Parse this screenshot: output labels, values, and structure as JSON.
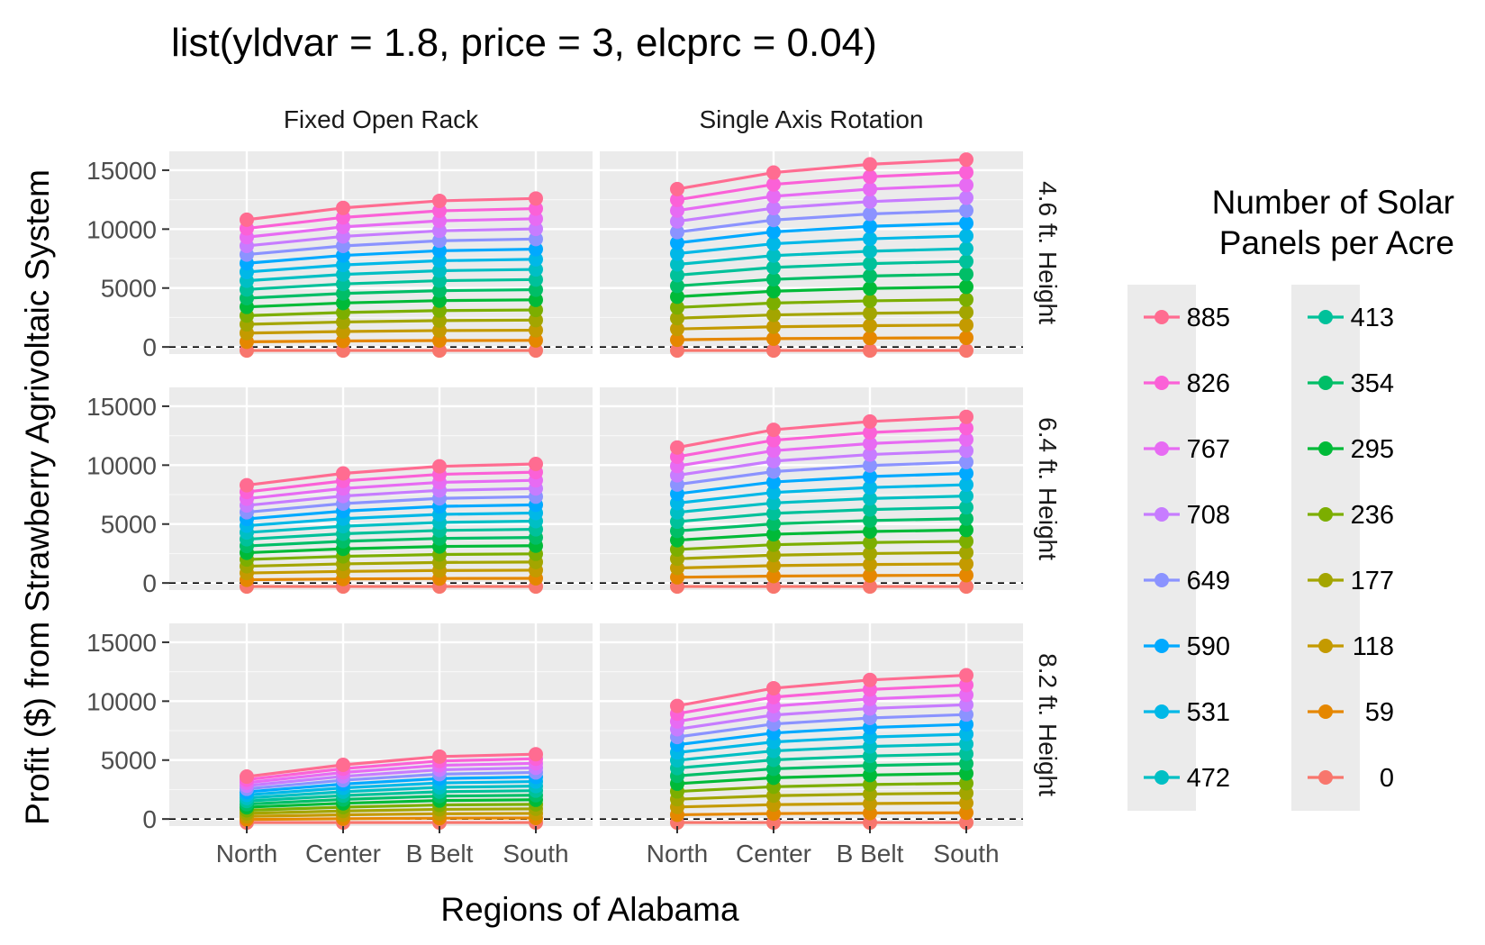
{
  "chart_data": {
    "type": "line",
    "title": "list(yldvar = 1.8, price = 3, elcprc = 0.04)",
    "xlabel": "Regions of Alabama",
    "ylabel": "Profit ($) from Strawberry Agrivoltaic System",
    "categories": [
      "North",
      "Center",
      "B Belt",
      "South"
    ],
    "ylim": [
      -600,
      16600
    ],
    "yticks": [
      0,
      5000,
      10000,
      15000
    ],
    "reference_line": {
      "y": 0,
      "style": "dashed"
    },
    "grid": true,
    "facet_columns": [
      "Fixed Open Rack",
      "Single Axis Rotation"
    ],
    "facet_rows": [
      "4.6 ft. Height",
      "6.4 ft. Height",
      "8.2 ft. Height"
    ],
    "legend": {
      "title_lines": [
        "Number of Solar",
        "Panels per Acre"
      ],
      "position": "right",
      "entries": [
        {
          "label": "885",
          "color": "#FF6C91"
        },
        {
          "label": "826",
          "color": "#FB61D7"
        },
        {
          "label": "767",
          "color": "#E76BF3"
        },
        {
          "label": "708",
          "color": "#C77CFF"
        },
        {
          "label": "649",
          "color": "#8B93FF"
        },
        {
          "label": "590",
          "color": "#00A9FF"
        },
        {
          "label": "531",
          "color": "#00B8E7"
        },
        {
          "label": "472",
          "color": "#00BFC4"
        },
        {
          "label": "413",
          "color": "#00C19A"
        },
        {
          "label": "354",
          "color": "#00BE67"
        },
        {
          "label": "295",
          "color": "#00BA38"
        },
        {
          "label": "236",
          "color": "#7CAE00"
        },
        {
          "label": "177",
          "color": "#A3A500"
        },
        {
          "label": "118",
          "color": "#C49A00"
        },
        {
          "label": "59",
          "color": "#E58700"
        },
        {
          "label": "0",
          "color": "#F8766D"
        }
      ]
    },
    "panel_summary_note_values": {
      "series_order": [
        "0",
        "59",
        "118",
        "177",
        "236",
        "295",
        "354",
        "413",
        "472",
        "531",
        "590",
        "649",
        "708",
        "767",
        "826",
        "885"
      ]
    },
    "panels": [
      {
        "column": "Fixed Open Rack",
        "row": "4.6 ft. Height",
        "series_0": [
          -300,
          -300,
          -300,
          -300
        ],
        "series_885": [
          10800,
          11800,
          12400,
          12600
        ]
      },
      {
        "column": "Single Axis Rotation",
        "row": "4.6 ft. Height",
        "series_0": [
          -300,
          -300,
          -300,
          -300
        ],
        "series_885": [
          13400,
          14800,
          15500,
          15900
        ]
      },
      {
        "column": "Fixed Open Rack",
        "row": "6.4 ft. Height",
        "series_0": [
          -300,
          -300,
          -300,
          -300
        ],
        "series_885": [
          8300,
          9300,
          9900,
          10100
        ]
      },
      {
        "column": "Single Axis Rotation",
        "row": "6.4 ft. Height",
        "series_0": [
          -300,
          -300,
          -300,
          -300
        ],
        "series_885": [
          11500,
          13000,
          13700,
          14100
        ]
      },
      {
        "column": "Fixed Open Rack",
        "row": "8.2 ft. Height",
        "series_0": [
          -300,
          -300,
          -300,
          -300
        ],
        "series_885": [
          3600,
          4600,
          5300,
          5500
        ]
      },
      {
        "column": "Single Axis Rotation",
        "row": "8.2 ft. Height",
        "series_0": [
          -300,
          -300,
          -300,
          -300
        ],
        "series_885": [
          9600,
          11100,
          11800,
          12200
        ]
      }
    ]
  }
}
